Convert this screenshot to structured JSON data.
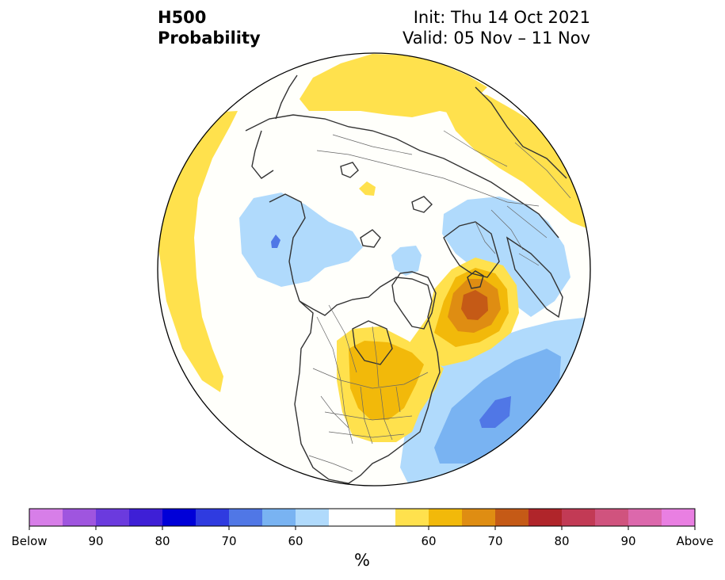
{
  "header": {
    "field": "H500",
    "product": "Probability",
    "init": "Init: Thu 14 Oct 2021",
    "valid": "Valid: 05 Nov – 11 Nov"
  },
  "map": {
    "projection": "north polar stereographic",
    "region": "Northern Hemisphere",
    "features": [
      "coastlines",
      "country borders",
      "US state borders",
      "Canadian province borders"
    ],
    "anomalies": [
      {
        "sign": "above",
        "max_category": "70",
        "location": "northeast Atlantic / west of British Isles"
      },
      {
        "sign": "above",
        "max_category": "60",
        "location": "central & eastern North America, Great Lakes"
      },
      {
        "sign": "above",
        "max_category": "below 60",
        "location": "central North Pacific"
      },
      {
        "sign": "above",
        "max_category": "below 60",
        "location": "Eurasian Arctic and northern Russia"
      },
      {
        "sign": "above",
        "max_category": "below 60",
        "location": "southeast Asia / Tibet"
      },
      {
        "sign": "below",
        "max_category": "70",
        "location": "subtropical North Atlantic"
      },
      {
        "sign": "below",
        "max_category": "70",
        "location": "Arctic near eastern Siberia"
      },
      {
        "sign": "below",
        "max_category": "below 60",
        "location": "Europe"
      },
      {
        "sign": "below",
        "max_category": "below 60",
        "location": "north of Greenland"
      }
    ]
  },
  "colorbar": {
    "unit": "%",
    "tick_labels": [
      "Below",
      "90",
      "80",
      "70",
      "60",
      "60",
      "70",
      "80",
      "90",
      "Above"
    ],
    "colors": [
      "#d77ee8",
      "#9f55df",
      "#6b3ade",
      "#3e1fd6",
      "#0000d8",
      "#2f3be0",
      "#5077e6",
      "#79b3f2",
      "#b0dafc",
      "#ffffff",
      "#ffffff",
      "#ffe14d",
      "#f2b90a",
      "#df8d12",
      "#c55a16",
      "#b0252a",
      "#c23a55",
      "#d0537e",
      "#dc68ac",
      "#e97fe2"
    ]
  }
}
